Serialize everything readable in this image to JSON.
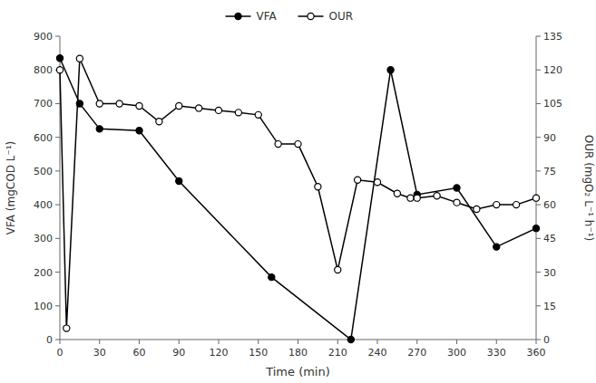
{
  "chart_data": {
    "type": "line",
    "xlabel": "Time (min)",
    "ylabel": "VFA (mgCOD L⁻¹)",
    "y2label": "OUR (mgO₂ L⁻¹ h⁻¹)",
    "xlim": [
      0,
      360
    ],
    "xticks": [
      0,
      30,
      60,
      90,
      120,
      150,
      180,
      210,
      240,
      270,
      300,
      330,
      360
    ],
    "ylim": [
      0,
      900
    ],
    "yticks": [
      0,
      100,
      200,
      300,
      400,
      500,
      600,
      700,
      800,
      900
    ],
    "y2lim": [
      0,
      135
    ],
    "y2ticks": [
      0,
      15,
      30,
      45,
      60,
      75,
      90,
      105,
      120,
      135
    ],
    "grid": false,
    "legend": "upper center",
    "series": [
      {
        "name": "VFA",
        "color": "black",
        "marker": "circle",
        "axis": "y",
        "x": [
          0,
          15,
          30,
          60,
          90,
          160,
          220,
          250,
          270,
          300,
          330,
          360
        ],
        "values": [
          835,
          700,
          625,
          620,
          470,
          185,
          0,
          800,
          430,
          450,
          275,
          330
        ]
      },
      {
        "name": "OUR",
        "color": "black",
        "marker": "open-circle",
        "axis": "y2",
        "x": [
          0,
          5,
          15,
          30,
          45,
          60,
          75,
          90,
          105,
          120,
          135,
          150,
          165,
          180,
          195,
          210,
          225,
          240,
          255,
          265,
          270,
          285,
          300,
          315,
          330,
          345,
          360
        ],
        "values": [
          120,
          5,
          125,
          105,
          105,
          104,
          97,
          104,
          103,
          102,
          101,
          100,
          87,
          87,
          68,
          31,
          71,
          70,
          65,
          63,
          63,
          64,
          61,
          58,
          60,
          60,
          63
        ]
      }
    ]
  }
}
